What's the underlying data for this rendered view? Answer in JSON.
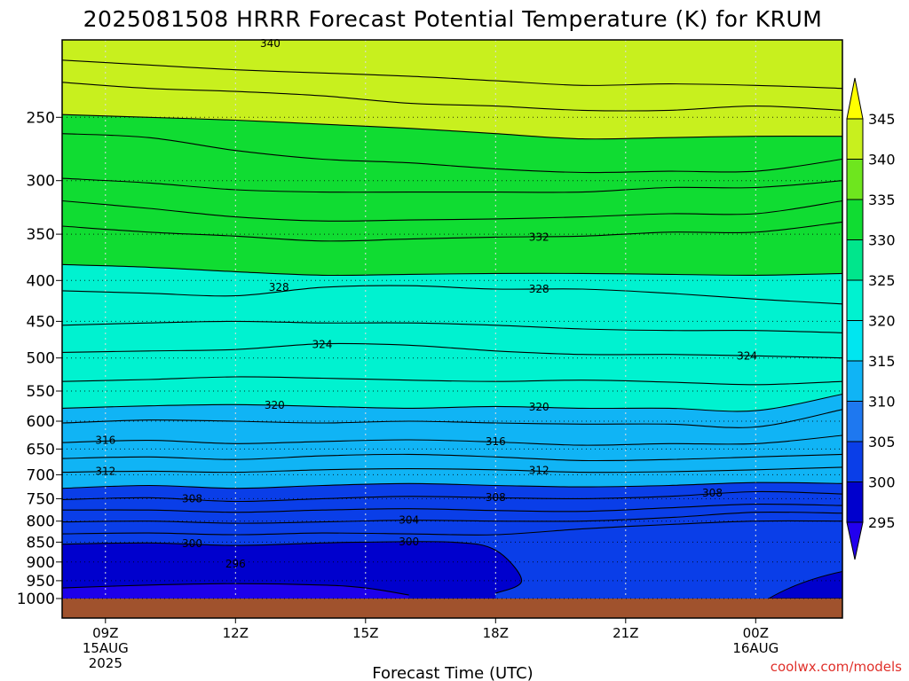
{
  "chart_data": {
    "type": "heatmap",
    "title": "2025081508 HRRR Forecast Potential Temperature (K) for KRUM",
    "xlabel": "Forecast Time (UTC)",
    "ylabel": "",
    "y_axis": {
      "scale": "log",
      "inverted": true,
      "ticks": [
        1000,
        950,
        900,
        850,
        800,
        750,
        700,
        650,
        600,
        550,
        500,
        450,
        400,
        350,
        300,
        250
      ],
      "range": [
        1000,
        200
      ]
    },
    "x_axis": {
      "range_hours": [
        8,
        26
      ],
      "ticks": [
        {
          "hour": 9,
          "label": "09Z",
          "line2": "15AUG",
          "line3": "2025"
        },
        {
          "hour": 12,
          "label": "12Z"
        },
        {
          "hour": 15,
          "label": "15Z"
        },
        {
          "hour": 18,
          "label": "18Z"
        },
        {
          "hour": 21,
          "label": "21Z"
        },
        {
          "hour": 24,
          "label": "00Z",
          "line2": "16AUG"
        }
      ]
    },
    "grid": true,
    "colorbar": {
      "levels": [
        295,
        300,
        305,
        310,
        315,
        320,
        325,
        330,
        335,
        340,
        345
      ],
      "colors": [
        "#2200ee",
        "#0000cd",
        "#0a3ee8",
        "#1e78f0",
        "#10b4f5",
        "#00e6f0",
        "#00f2d0",
        "#00e68c",
        "#10dc32",
        "#6ee61e",
        "#c8f01e",
        "#ffff00"
      ]
    },
    "isentropes": [
      {
        "theta": 296,
        "p": [
          [
            8,
            970
          ],
          [
            10,
            962
          ],
          [
            12,
            958
          ],
          [
            14,
            962
          ],
          [
            15,
            970
          ],
          [
            16,
            990
          ]
        ]
      },
      {
        "theta": 300,
        "p": [
          [
            8,
            855
          ],
          [
            10,
            852
          ],
          [
            12,
            858
          ],
          [
            14,
            852
          ],
          [
            15,
            850
          ],
          [
            17,
            850
          ],
          [
            18,
            870
          ],
          [
            18.6,
            950
          ],
          [
            18,
            985
          ]
        ]
      },
      {
        "theta": 302,
        "p": [
          [
            8,
            830
          ],
          [
            10,
            828
          ],
          [
            12,
            832
          ],
          [
            14,
            828
          ],
          [
            16,
            830
          ],
          [
            18,
            832
          ],
          [
            20,
            818
          ],
          [
            22,
            808
          ],
          [
            24,
            800
          ],
          [
            26,
            800
          ]
        ]
      },
      {
        "theta": 304,
        "p": [
          [
            8,
            802
          ],
          [
            10,
            800
          ],
          [
            12,
            805
          ],
          [
            14,
            802
          ],
          [
            16,
            798
          ],
          [
            18,
            800
          ],
          [
            20,
            800
          ],
          [
            22,
            792
          ],
          [
            24,
            780
          ],
          [
            26,
            782
          ]
        ]
      },
      {
        "theta": 306,
        "p": [
          [
            8,
            775
          ],
          [
            10,
            775
          ],
          [
            12,
            780
          ],
          [
            14,
            775
          ],
          [
            16,
            772
          ],
          [
            18,
            776
          ],
          [
            20,
            778
          ],
          [
            22,
            770
          ],
          [
            24,
            762
          ],
          [
            26,
            765
          ]
        ]
      },
      {
        "theta": 308,
        "p": [
          [
            8,
            752
          ],
          [
            10,
            748
          ],
          [
            12,
            756
          ],
          [
            14,
            750
          ],
          [
            16,
            745
          ],
          [
            18,
            748
          ],
          [
            20,
            750
          ],
          [
            22,
            745
          ],
          [
            24,
            735
          ],
          [
            26,
            740
          ]
        ]
      },
      {
        "theta": 310,
        "p": [
          [
            8,
            728
          ],
          [
            10,
            722
          ],
          [
            12,
            728
          ],
          [
            14,
            722
          ],
          [
            16,
            718
          ],
          [
            18,
            722
          ],
          [
            20,
            725
          ],
          [
            22,
            722
          ],
          [
            24,
            716
          ],
          [
            26,
            718
          ]
        ]
      },
      {
        "theta": 312,
        "p": [
          [
            8,
            695
          ],
          [
            10,
            693
          ],
          [
            12,
            695
          ],
          [
            14,
            690
          ],
          [
            16,
            688
          ],
          [
            18,
            690
          ],
          [
            20,
            695
          ],
          [
            22,
            694
          ],
          [
            24,
            690
          ],
          [
            26,
            685
          ]
        ]
      },
      {
        "theta": 314,
        "p": [
          [
            8,
            668
          ],
          [
            10,
            665
          ],
          [
            12,
            670
          ],
          [
            14,
            663
          ],
          [
            16,
            660
          ],
          [
            18,
            665
          ],
          [
            20,
            672
          ],
          [
            22,
            670
          ],
          [
            24,
            665
          ],
          [
            26,
            660
          ]
        ]
      },
      {
        "theta": 316,
        "p": [
          [
            8,
            638
          ],
          [
            10,
            634
          ],
          [
            12,
            640
          ],
          [
            14,
            636
          ],
          [
            16,
            633
          ],
          [
            18,
            637
          ],
          [
            20,
            643
          ],
          [
            22,
            640
          ],
          [
            24,
            640
          ],
          [
            26,
            625
          ]
        ]
      },
      {
        "theta": 318,
        "p": [
          [
            8,
            603
          ],
          [
            10,
            598
          ],
          [
            12,
            600
          ],
          [
            14,
            603
          ],
          [
            16,
            600
          ],
          [
            18,
            603
          ],
          [
            20,
            605
          ],
          [
            22,
            605
          ],
          [
            24,
            610
          ],
          [
            26,
            580
          ]
        ]
      },
      {
        "theta": 320,
        "p": [
          [
            8,
            578
          ],
          [
            10,
            574
          ],
          [
            12,
            572
          ],
          [
            14,
            575
          ],
          [
            16,
            578
          ],
          [
            18,
            575
          ],
          [
            20,
            578
          ],
          [
            22,
            578
          ],
          [
            24,
            582
          ],
          [
            26,
            555
          ]
        ]
      },
      {
        "theta": 322,
        "p": [
          [
            8,
            535
          ],
          [
            10,
            532
          ],
          [
            12,
            528
          ],
          [
            14,
            530
          ],
          [
            16,
            533
          ],
          [
            18,
            535
          ],
          [
            20,
            533
          ],
          [
            22,
            536
          ],
          [
            24,
            540
          ],
          [
            26,
            535
          ]
        ]
      },
      {
        "theta": 324,
        "p": [
          [
            8,
            492
          ],
          [
            10,
            490
          ],
          [
            12,
            488
          ],
          [
            14,
            480
          ],
          [
            16,
            482
          ],
          [
            18,
            490
          ],
          [
            20,
            495
          ],
          [
            22,
            495
          ],
          [
            24,
            497
          ],
          [
            26,
            500
          ]
        ]
      },
      {
        "theta": 326,
        "p": [
          [
            8,
            455
          ],
          [
            10,
            452
          ],
          [
            12,
            450
          ],
          [
            14,
            452
          ],
          [
            16,
            452
          ],
          [
            18,
            455
          ],
          [
            20,
            460
          ],
          [
            22,
            462
          ],
          [
            24,
            462
          ],
          [
            26,
            465
          ]
        ]
      },
      {
        "theta": 328,
        "p": [
          [
            8,
            412
          ],
          [
            10,
            415
          ],
          [
            12,
            418
          ],
          [
            14,
            408
          ],
          [
            16,
            406
          ],
          [
            18,
            410
          ],
          [
            20,
            410
          ],
          [
            22,
            415
          ],
          [
            24,
            422
          ],
          [
            26,
            428
          ]
        ]
      },
      {
        "theta": 330,
        "p": [
          [
            8,
            382
          ],
          [
            10,
            385
          ],
          [
            12,
            390
          ],
          [
            14,
            394
          ],
          [
            16,
            393
          ],
          [
            18,
            392
          ],
          [
            20,
            392
          ],
          [
            22,
            393
          ],
          [
            24,
            394
          ],
          [
            26,
            392
          ]
        ]
      },
      {
        "theta": 332,
        "p": [
          [
            8,
            342
          ],
          [
            10,
            348
          ],
          [
            12,
            352
          ],
          [
            14,
            357
          ],
          [
            16,
            355
          ],
          [
            18,
            353
          ],
          [
            20,
            352
          ],
          [
            22,
            348
          ],
          [
            24,
            348
          ],
          [
            26,
            338
          ]
        ]
      },
      {
        "theta": 334,
        "p": [
          [
            8,
            318
          ],
          [
            10,
            325
          ],
          [
            12,
            333
          ],
          [
            14,
            337
          ],
          [
            16,
            336
          ],
          [
            18,
            335
          ],
          [
            20,
            333
          ],
          [
            22,
            330
          ],
          [
            24,
            330
          ],
          [
            26,
            318
          ]
        ]
      },
      {
        "theta": 336,
        "p": [
          [
            8,
            298
          ],
          [
            10,
            302
          ],
          [
            12,
            308
          ],
          [
            14,
            310
          ],
          [
            16,
            310
          ],
          [
            18,
            310
          ],
          [
            20,
            310
          ],
          [
            22,
            306
          ],
          [
            24,
            306
          ],
          [
            26,
            300
          ]
        ]
      },
      {
        "theta": 338,
        "p": [
          [
            8,
            262
          ],
          [
            10,
            265
          ],
          [
            12,
            275
          ],
          [
            14,
            282
          ],
          [
            16,
            285
          ],
          [
            18,
            290
          ],
          [
            20,
            293
          ],
          [
            22,
            292
          ],
          [
            24,
            292
          ],
          [
            26,
            282
          ]
        ]
      },
      {
        "theta": 340,
        "p": [
          [
            8,
            248
          ],
          [
            10,
            250
          ],
          [
            12,
            252
          ],
          [
            14,
            255
          ],
          [
            16,
            258
          ],
          [
            18,
            262
          ],
          [
            20,
            266
          ],
          [
            22,
            265
          ],
          [
            24,
            264
          ],
          [
            26,
            264
          ]
        ]
      },
      {
        "theta": 342,
        "p": [
          [
            8,
            226
          ],
          [
            10,
            230
          ],
          [
            12,
            232
          ],
          [
            14,
            235
          ],
          [
            16,
            240
          ],
          [
            18,
            242
          ],
          [
            20,
            245
          ],
          [
            22,
            245
          ],
          [
            24,
            242
          ],
          [
            26,
            245
          ]
        ]
      },
      {
        "theta": 344,
        "p": [
          [
            8,
            212
          ],
          [
            10,
            215
          ],
          [
            12,
            218
          ],
          [
            14,
            220
          ],
          [
            16,
            222
          ],
          [
            18,
            225
          ],
          [
            20,
            228
          ],
          [
            22,
            227
          ],
          [
            24,
            228
          ],
          [
            26,
            230
          ]
        ]
      }
    ],
    "contour_labels": [
      {
        "text": "340",
        "hour": 12.8,
        "p": 202
      },
      {
        "text": "332",
        "hour": 19.0,
        "p": 353
      },
      {
        "text": "328",
        "hour": 13.0,
        "p": 408
      },
      {
        "text": "328",
        "hour": 19.0,
        "p": 410
      },
      {
        "text": "324",
        "hour": 14.0,
        "p": 481
      },
      {
        "text": "324",
        "hour": 23.8,
        "p": 497
      },
      {
        "text": "320",
        "hour": 12.9,
        "p": 573
      },
      {
        "text": "320",
        "hour": 19.0,
        "p": 576
      },
      {
        "text": "316",
        "hour": 9.0,
        "p": 634
      },
      {
        "text": "316",
        "hour": 18.0,
        "p": 636
      },
      {
        "text": "312",
        "hour": 9.0,
        "p": 693
      },
      {
        "text": "312",
        "hour": 19.0,
        "p": 691
      },
      {
        "text": "308",
        "hour": 11.0,
        "p": 750
      },
      {
        "text": "308",
        "hour": 18.0,
        "p": 747
      },
      {
        "text": "308",
        "hour": 23.0,
        "p": 738
      },
      {
        "text": "304",
        "hour": 16.0,
        "p": 798
      },
      {
        "text": "300",
        "hour": 11.0,
        "p": 853
      },
      {
        "text": "300",
        "hour": 16.0,
        "p": 849
      },
      {
        "text": "296",
        "hour": 12.0,
        "p": 905
      }
    ],
    "ground_color": "#a0522d"
  },
  "credit": "coolwx.com/models"
}
